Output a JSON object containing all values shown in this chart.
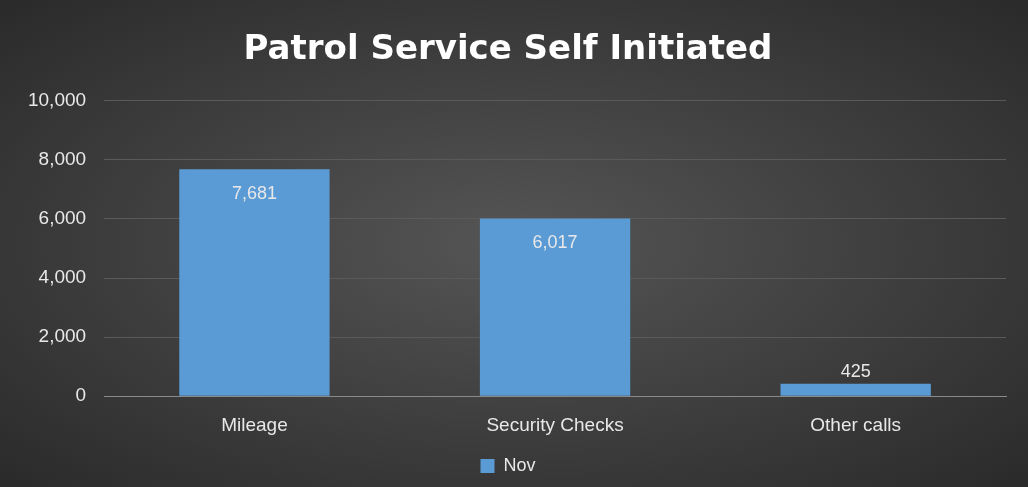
{
  "chart_data": {
    "type": "bar",
    "title": "Patrol Service Self Initiated",
    "categories": [
      "Mileage",
      "Security Checks",
      "Other calls"
    ],
    "series": [
      {
        "name": "Nov",
        "color": "#5b9bd5",
        "values": [
          7681,
          6017,
          425
        ],
        "value_labels": [
          "7,681",
          "6,017",
          "425"
        ]
      }
    ],
    "ylim": [
      0,
      10000
    ],
    "yticks": [
      {
        "value": 0,
        "label": "0"
      },
      {
        "value": 2000,
        "label": "2,000"
      },
      {
        "value": 4000,
        "label": "4,000"
      },
      {
        "value": 6000,
        "label": "6,000"
      },
      {
        "value": 8000,
        "label": "8,000"
      },
      {
        "value": 10000,
        "label": "10,000"
      }
    ],
    "grid": "y",
    "legend": "bottom"
  }
}
